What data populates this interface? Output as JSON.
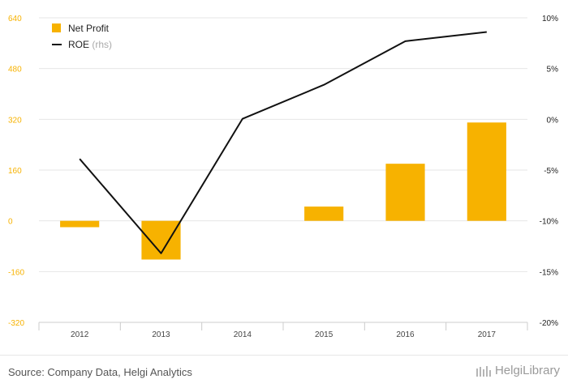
{
  "chart_data": {
    "type": "bar",
    "categories": [
      "2012",
      "2013",
      "2014",
      "2015",
      "2016",
      "2017"
    ],
    "series": [
      {
        "name": "Net Profit",
        "type": "bar",
        "axis": "left",
        "values": [
          -20,
          -122,
          null,
          45,
          180,
          310
        ]
      },
      {
        "name": "ROE",
        "type": "line",
        "axis": "right",
        "values": [
          -3.9,
          -13.2,
          0.05,
          3.4,
          7.7,
          8.6
        ]
      }
    ],
    "y_left": {
      "ticks": [
        640,
        480,
        320,
        160,
        0,
        -160,
        -320
      ],
      "ylim": [
        -320,
        640
      ]
    },
    "y_right": {
      "ticks": [
        "10%",
        "5%",
        "0%",
        "-5%",
        "-10%",
        "-15%",
        "-20%"
      ],
      "ylim": [
        -20,
        10
      ]
    },
    "legend": {
      "placement": "top-left",
      "items": [
        {
          "label": "Net Profit",
          "suffix": ""
        },
        {
          "label": "ROE",
          "suffix": "(rhs)"
        }
      ]
    },
    "colors": {
      "bar": "#F7B200",
      "line": "#111111",
      "left_tick": "#F7B200",
      "right_tick": "#222222",
      "grid": "#e6e6e6"
    },
    "grid": true
  },
  "footer": {
    "source": "Source: Company Data, Helgi Analytics",
    "brand": "HelgiLibrary"
  }
}
